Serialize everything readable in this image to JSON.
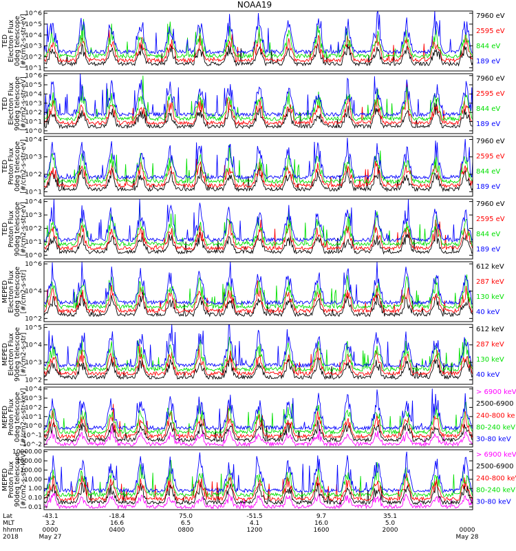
{
  "title": "NOAA19",
  "colors": {
    "black": "#000000",
    "red": "#ff0000",
    "green": "#00e000",
    "blue": "#0000ff",
    "magenta": "#ff00ff"
  },
  "chart_data": [
    {
      "type": "line",
      "name": "ted-e-0",
      "ylabel": [
        "TED",
        "Electron Flux",
        "0deg telescope",
        "[#/cm2-s-str-eV]"
      ],
      "yticks": [
        "10^1",
        "10^2",
        "10^3",
        "10^4",
        "10^5",
        "10^6"
      ],
      "ylim_exp": [
        0.7,
        6.2
      ],
      "series": [
        {
          "name": "7960 eV",
          "color": "#000000"
        },
        {
          "name": "2595 eV",
          "color": "#ff0000"
        },
        {
          "name": "844 eV",
          "color": "#00e000"
        },
        {
          "name": "189 eV",
          "color": "#0000ff"
        }
      ]
    },
    {
      "type": "line",
      "name": "ted-e-90",
      "ylabel": [
        "TED",
        "Electron Flux",
        "90deg telescope",
        "[#/cm2-s-str-eV]"
      ],
      "yticks": [
        "10^0",
        "10^1",
        "10^2",
        "10^3",
        "10^4",
        "10^5",
        "10^6"
      ],
      "ylim_exp": [
        -0.2,
        6.2
      ],
      "series": [
        {
          "name": "7960 eV",
          "color": "#000000"
        },
        {
          "name": "2595 eV",
          "color": "#ff0000"
        },
        {
          "name": "844 eV",
          "color": "#00e000"
        },
        {
          "name": "189 eV",
          "color": "#0000ff"
        }
      ]
    },
    {
      "type": "line",
      "name": "ted-p-0",
      "ylabel": [
        "TED",
        "Proton Flux",
        "0deg telescope",
        "[#/cm2-s-str-eV]"
      ],
      "yticks": [
        "10^1",
        "10^2",
        "10^3",
        "10^4"
      ],
      "ylim_exp": [
        0.7,
        4.6
      ],
      "series": [
        {
          "name": "7960 eV",
          "color": "#000000"
        },
        {
          "name": "2595 eV",
          "color": "#ff0000"
        },
        {
          "name": "844 eV",
          "color": "#00e000"
        },
        {
          "name": "189 eV",
          "color": "#0000ff"
        }
      ]
    },
    {
      "type": "line",
      "name": "ted-p-90",
      "ylabel": [
        "TED",
        "Proton Flux",
        "90deg telescope",
        "[#/cm2-s-str-eV]"
      ],
      "yticks": [
        "10^0",
        "10^1",
        "10^2",
        "10^3",
        "10^4"
      ],
      "ylim_exp": [
        -0.2,
        4.6
      ],
      "series": [
        {
          "name": "7960 eV",
          "color": "#000000"
        },
        {
          "name": "2595 eV",
          "color": "#ff0000"
        },
        {
          "name": "844 eV",
          "color": "#00e000"
        },
        {
          "name": "189 eV",
          "color": "#0000ff"
        }
      ]
    },
    {
      "type": "line",
      "name": "meped-e-0",
      "ylabel": [
        "MEPED",
        "Electron Flux",
        "0deg telescope",
        "[#/cm2-s-str]"
      ],
      "yticks": [
        "10^2",
        "10^4",
        "10^6"
      ],
      "ylim_exp": [
        1.2,
        6.8
      ],
      "series": [
        {
          "name": "612 keV",
          "color": "#000000"
        },
        {
          "name": "287 keV",
          "color": "#ff0000"
        },
        {
          "name": "130 keV",
          "color": "#00e000"
        },
        {
          "name": "40 keV",
          "color": "#0000ff"
        }
      ]
    },
    {
      "type": "line",
      "name": "meped-e-90",
      "ylabel": [
        "MEPED",
        "Electron Flux",
        "90deg telescope",
        "[#/cm2-s-str]"
      ],
      "yticks": [
        "10^2",
        "10^3",
        "10^4",
        "10^5"
      ],
      "ylim_exp": [
        1.6,
        5.6
      ],
      "series": [
        {
          "name": "612 keV",
          "color": "#000000"
        },
        {
          "name": "287 keV",
          "color": "#ff0000"
        },
        {
          "name": "130 keV",
          "color": "#00e000"
        },
        {
          "name": "40 keV",
          "color": "#0000ff"
        }
      ]
    },
    {
      "type": "line",
      "name": "meped-p-0",
      "ylabel": [
        "MEPED",
        "Proton Flux",
        "0deg telescope",
        "[#/cm2-s-str-keV]"
      ],
      "yticks": [
        "10^-2",
        "10^-1",
        "10^0",
        "10^1",
        "10^2",
        "10^3",
        "10^4"
      ],
      "ylim_exp": [
        -2.3,
        4.2
      ],
      "series": [
        {
          "name": "> 6900 keV",
          "color": "#ff00ff"
        },
        {
          "name": "2500-6900",
          "color": "#000000"
        },
        {
          "name": "240-800 ke",
          "color": "#ff0000"
        },
        {
          "name": "80-240 keV",
          "color": "#00e000"
        },
        {
          "name": "30-80 keV",
          "color": "#0000ff"
        }
      ]
    },
    {
      "type": "line",
      "name": "meped-p-90",
      "ylabel": [
        "MEPED",
        "Proton Flux",
        "90deg telescope",
        "[#/cm2-s-str-keV]"
      ],
      "yticks": [
        "0.01",
        "0.10",
        "1.00",
        "10.00",
        "100.00",
        "1000.00",
        "10000.00"
      ],
      "ylim_exp": [
        -2.2,
        4.3
      ],
      "series": [
        {
          "name": "> 6900 keV",
          "color": "#ff00ff"
        },
        {
          "name": "2500-6900",
          "color": "#000000"
        },
        {
          "name": "240-800 keV",
          "color": "#ff0000"
        },
        {
          "name": "80-240 keV",
          "color": "#00e000"
        },
        {
          "name": "30-80 keV",
          "color": "#0000ff"
        }
      ]
    }
  ],
  "x_axis": {
    "row_labels": [
      "Lat",
      "MLT",
      "hhmm",
      "2018"
    ],
    "ticks": [
      {
        "lat": "-43.1",
        "mlt": "3.2",
        "hhmm": "0000",
        "date": "May 27"
      },
      {
        "lat": "-18.4",
        "mlt": "16.6",
        "hhmm": "0400",
        "date": ""
      },
      {
        "lat": "75.0",
        "mlt": "6.5",
        "hhmm": "0800",
        "date": ""
      },
      {
        "lat": "-51.5",
        "mlt": "4.1",
        "hhmm": "1200",
        "date": ""
      },
      {
        "lat": "9.7",
        "mlt": "16.0",
        "hhmm": "1600",
        "date": ""
      },
      {
        "lat": "35.1",
        "mlt": "5.0",
        "hhmm": "2000",
        "date": ""
      },
      {
        "lat": "",
        "mlt": "",
        "hhmm": "0000",
        "date": "May 28"
      }
    ]
  }
}
